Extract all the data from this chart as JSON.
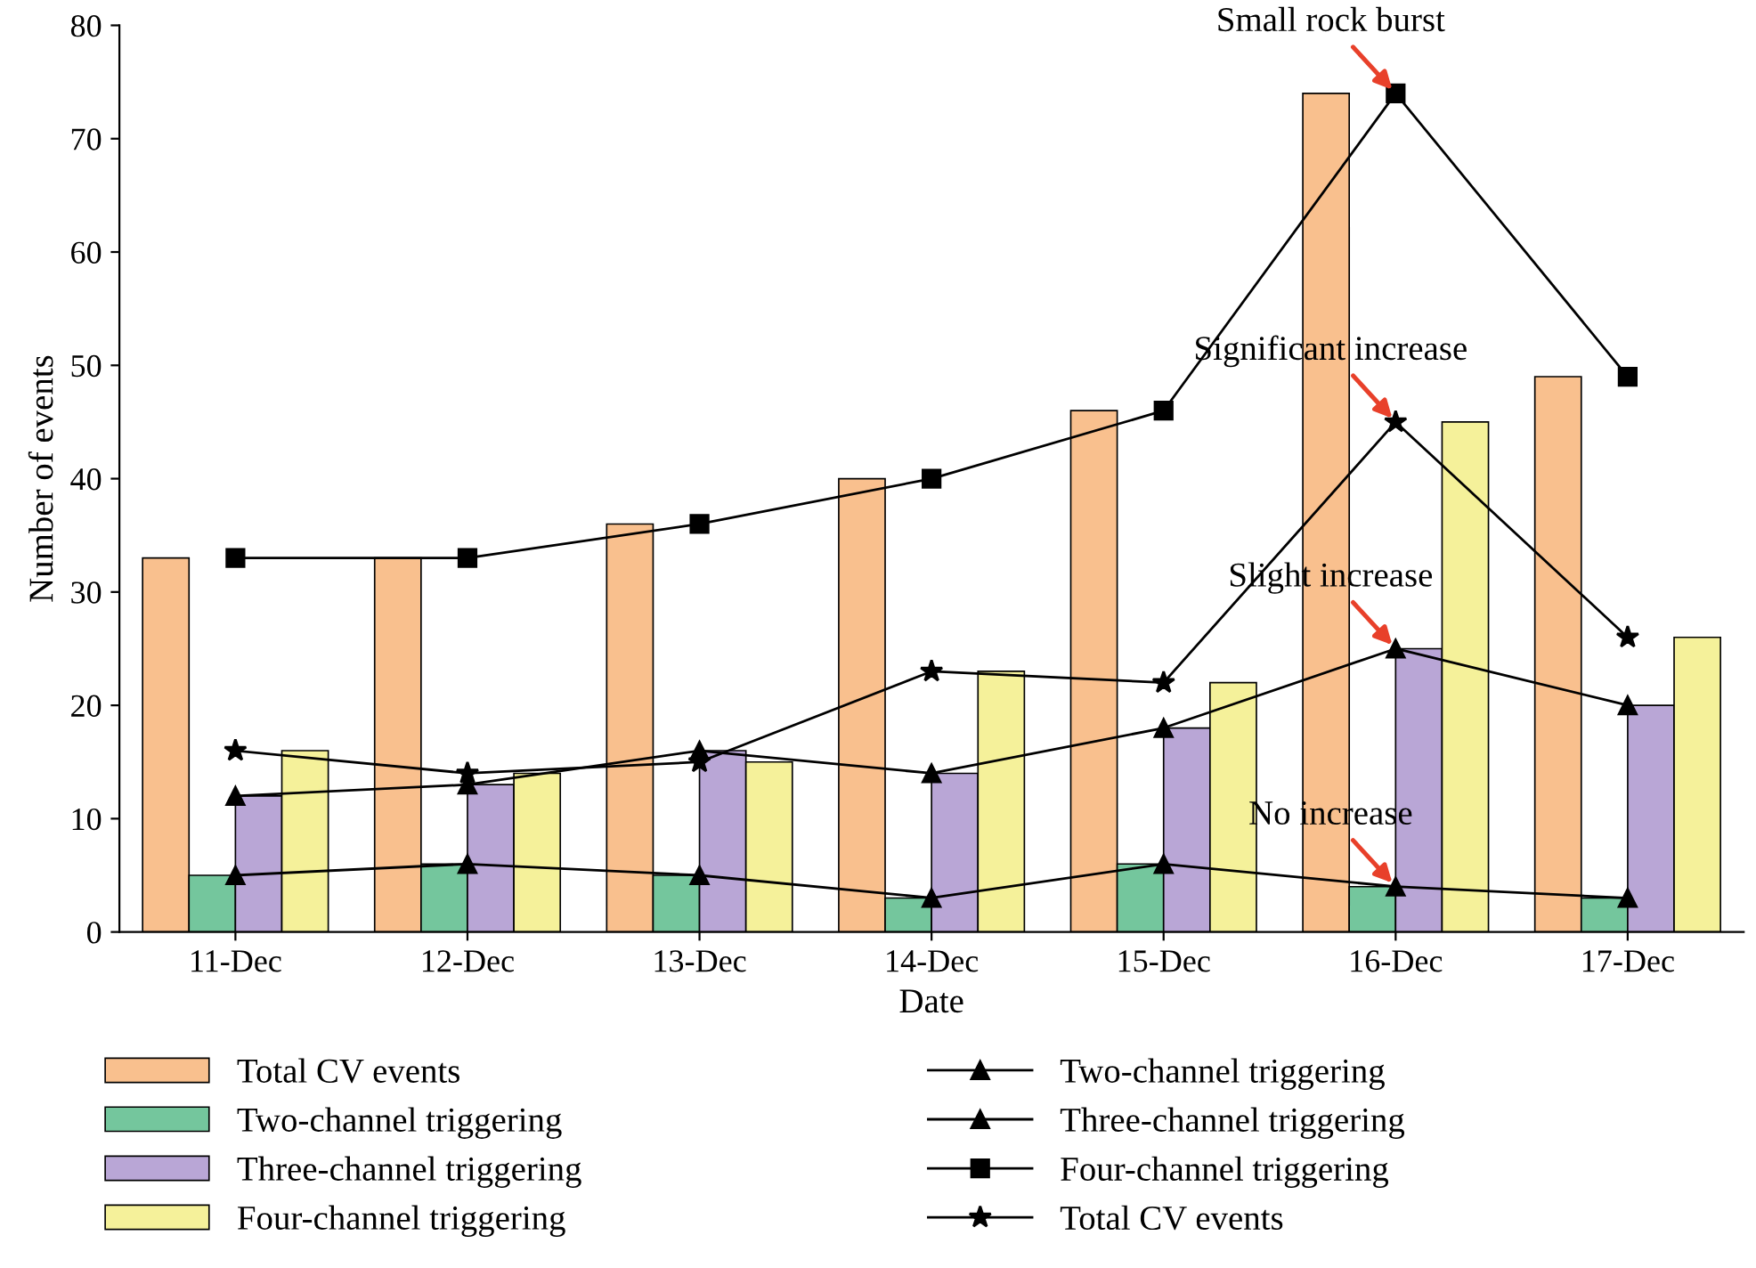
{
  "chart_data": {
    "type": "bar",
    "xlabel": "Date",
    "ylabel": "Number of events",
    "categories": [
      "11-Dec",
      "12-Dec",
      "13-Dec",
      "14-Dec",
      "15-Dec",
      "16-Dec",
      "17-Dec"
    ],
    "series": [
      {
        "name": "Two-channel triggering",
        "type": "line",
        "color": "#000000",
        "marker": "triangle",
        "values": [
          5,
          6,
          5,
          3,
          6,
          4,
          3
        ]
      },
      {
        "name": "Three-channel triggering",
        "type": "line",
        "color": "#000000",
        "marker": "triangle",
        "values": [
          12,
          13,
          16,
          14,
          18,
          25,
          20
        ]
      },
      {
        "name": "Four-channel triggering",
        "type": "line",
        "color": "#000000",
        "marker": "square",
        "values": [
          33,
          33,
          36,
          40,
          46,
          74,
          49
        ]
      },
      {
        "name": "Total CV events",
        "color": "#f9c08e",
        "values": [
          33,
          33,
          36,
          40,
          46,
          74,
          49
        ]
      },
      {
        "name": "Two-channel triggering",
        "color": "#74c69d",
        "values": [
          5,
          6,
          5,
          3,
          6,
          4,
          3
        ]
      },
      {
        "name": "Three-channel triggering",
        "color": "#b9a6d6",
        "values": [
          12,
          13,
          16,
          14,
          18,
          25,
          20
        ]
      },
      {
        "name": "Four-channel triggering",
        "color": "#f5f19a",
        "values": [
          16,
          14,
          15,
          23,
          22,
          45,
          26
        ]
      },
      {
        "name": "Total CV events",
        "type": "line",
        "color": "#000000",
        "marker": "star",
        "values": [
          16,
          14,
          15,
          23,
          22,
          45,
          26
        ]
      }
    ],
    "ylim": [
      0,
      80
    ],
    "yticks": [
      0,
      10,
      20,
      30,
      40,
      50,
      60,
      70,
      80
    ],
    "annotations": [
      {
        "text": "Small rock burst",
        "x": "16-Dec",
        "y": 74
      },
      {
        "text": "Significant increase",
        "x": "16-Dec",
        "y": 45
      },
      {
        "text": "Slight increase",
        "x": "16-Dec",
        "y": 25
      },
      {
        "text": "No increase",
        "x": "16-Dec",
        "y": 4
      }
    ],
    "legend": "bottom",
    "grid": false
  }
}
